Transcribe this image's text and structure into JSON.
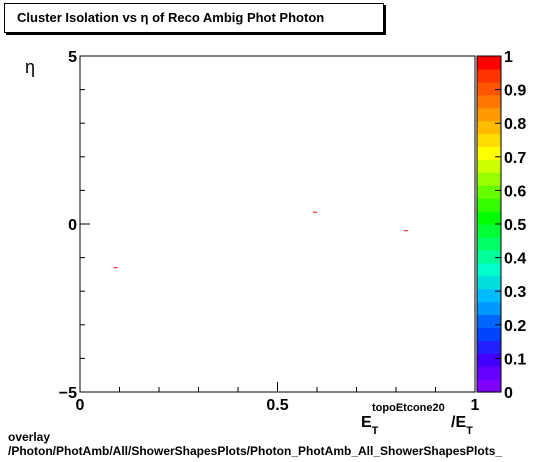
{
  "title": "Cluster Isolation vs    η of Reco Ambig Phot Photon",
  "footer": {
    "line1": "overlay",
    "line2": "/Photon/PhotAmb/All/ShowerShapesPlots/Photon_PhotAmb_All_ShowerShapesPlots_"
  },
  "chart_data": {
    "type": "scatter",
    "title": "Cluster Isolation vs    η of Reco Ambig Phot Photon",
    "xlabel": {
      "main": "E",
      "sub": "T",
      "sup": "topoEtcone20",
      "tail": "/E",
      "tail_sub": "T"
    },
    "ylabel": "η",
    "xlim": [
      0,
      1
    ],
    "ylim": [
      -5,
      5
    ],
    "x_ticks": [
      {
        "value": 0,
        "label": "0"
      },
      {
        "value": 0.5,
        "label": "0.5"
      },
      {
        "value": 1,
        "label": "1"
      }
    ],
    "y_ticks": [
      {
        "value": -5,
        "label": "−5"
      },
      {
        "value": 0,
        "label": "0"
      },
      {
        "value": 5,
        "label": "5"
      }
    ],
    "points": [
      {
        "x": 0.09,
        "y": -1.3
      },
      {
        "x": 0.595,
        "y": 0.35
      },
      {
        "x": 0.825,
        "y": -0.2
      }
    ],
    "point_color": "#ff0000",
    "grid": false,
    "colorbar": {
      "range": [
        0,
        1
      ],
      "labels": [
        "0",
        "0.1",
        "0.2",
        "0.3",
        "0.4",
        "0.5",
        "0.6",
        "0.7",
        "0.8",
        "0.9",
        "1"
      ],
      "colors": [
        "#7f00ff",
        "#6600ff",
        "#4400ff",
        "#2222ff",
        "#0044ff",
        "#0066ff",
        "#0099ff",
        "#00bbff",
        "#00dddd",
        "#00ffcc",
        "#00ff99",
        "#00ff66",
        "#00ff33",
        "#00ff00",
        "#33ff00",
        "#66ff00",
        "#99ff00",
        "#ccff00",
        "#ffff00",
        "#ffdd00",
        "#ffbb00",
        "#ff9900",
        "#ff7700",
        "#ff5500",
        "#ff3300",
        "#ff0000"
      ]
    }
  }
}
